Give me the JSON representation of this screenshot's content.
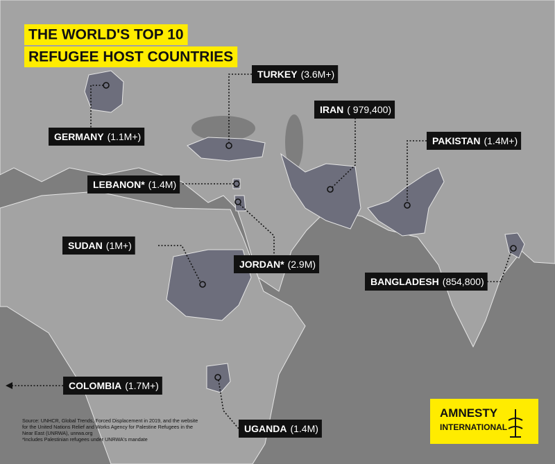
{
  "title": [
    "THE WORLD'S TOP 10",
    "REFUGEE HOST COUNTRIES"
  ],
  "countries": [
    {
      "name": "TURKEY",
      "figure": "(3.6M+)"
    },
    {
      "name": "IRAN",
      "figure": "( 979,400)"
    },
    {
      "name": "GERMANY",
      "figure": "(1.1M+)"
    },
    {
      "name": "PAKISTAN",
      "figure": "(1.4M+)"
    },
    {
      "name": "LEBANON*",
      "figure": "(1.4M)"
    },
    {
      "name": "SUDAN",
      "figure": "(1M+)"
    },
    {
      "name": "JORDAN*",
      "figure": "(2.9M)"
    },
    {
      "name": "BANGLADESH",
      "figure": "(854,800)"
    },
    {
      "name": "COLOMBIA",
      "figure": "(1.7M+)"
    },
    {
      "name": "UGANDA",
      "figure": "(1.4M)"
    }
  ],
  "source": [
    "Source: UNHCR, Global Trends, Forced Displacement in 2019, and the website",
    "for the United Nations Relief and Works Agency for Palestine Refugees in the",
    "Near East (UNRWA), unrwa.org",
    "*Includes Palestinian refugees under UNRWA's mandate"
  ],
  "logo": [
    "AMNESTY",
    "INTERNATIONAL"
  ]
}
